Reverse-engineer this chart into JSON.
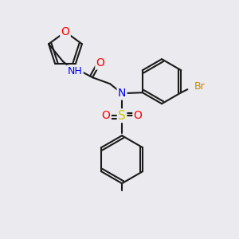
{
  "bg_color": "#eaeaef",
  "bond_color": "#1a1a1a",
  "bond_width": 1.5,
  "atom_colors": {
    "O": "#ff0000",
    "N": "#0000ff",
    "S": "#cccc00",
    "Br": "#cc8800",
    "H": "#708090",
    "C": "#1a1a1a"
  },
  "font_size": 9
}
